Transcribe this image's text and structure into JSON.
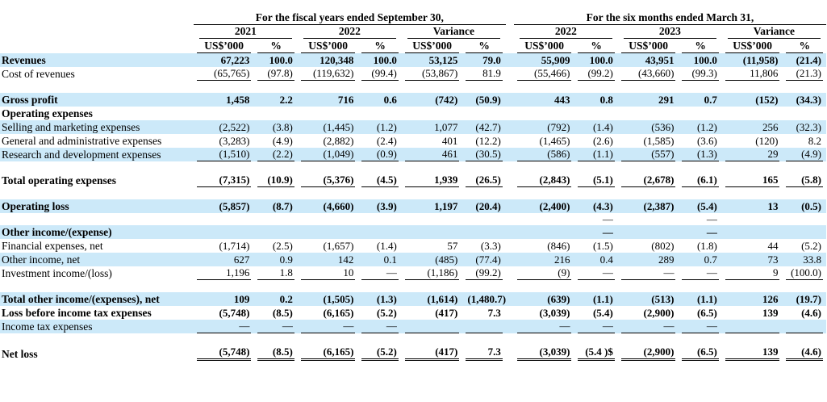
{
  "colors": {
    "row_highlight": "#cce9f9",
    "text": "#000000",
    "rule": "#000000"
  },
  "table": {
    "group_headers": [
      {
        "label": "For the fiscal years ended September 30,"
      },
      {
        "label": "For the six months ended March 31,"
      }
    ],
    "period_headers": [
      "2021",
      "2022",
      "Variance",
      "2022",
      "2023",
      "Variance"
    ],
    "unit_label": "US$’000",
    "pct_label": "%",
    "rows": [
      {
        "label": "Revenues",
        "bold": true,
        "bg": "blue",
        "cells": [
          "67,223",
          "100.0",
          "120,348",
          "100.0",
          "53,125",
          "79.0",
          "55,909",
          "100.0",
          "43,951",
          "100.0",
          "(11,958)",
          "(21.4)"
        ]
      },
      {
        "label": "Cost of revenues",
        "bg": "white",
        "underline": "single",
        "cells": [
          "(65,765)",
          "(97.8)",
          "(119,632)",
          "(99.4)",
          "(53,867)",
          "81.9",
          "(55,466)",
          "(99.2)",
          "(43,660)",
          "(99.3)",
          "11,806",
          "(21.3)"
        ]
      },
      {
        "spacer": true,
        "cells": [
          "",
          "",
          "",
          "",
          "",
          "",
          "",
          "",
          "",
          "",
          "",
          ""
        ]
      },
      {
        "label": "Gross profit",
        "bold": true,
        "bg": "blue",
        "cells": [
          "1,458",
          "2.2",
          "716",
          "0.6",
          "(742)",
          "(50.9)",
          "443",
          "0.8",
          "291",
          "0.7",
          "(152)",
          "(34.3)"
        ]
      },
      {
        "label": "Operating expenses",
        "bold": true,
        "bg": "white",
        "cells": [
          "",
          "",
          "",
          "",
          "",
          "",
          "",
          "",
          "",
          "",
          "",
          ""
        ]
      },
      {
        "label": "Selling and marketing expenses",
        "bg": "blue",
        "cells": [
          "(2,522)",
          "(3.8)",
          "(1,445)",
          "(1.2)",
          "1,077",
          "(42.7)",
          "(792)",
          "(1.4)",
          "(536)",
          "(1.2)",
          "256",
          "(32.3)"
        ]
      },
      {
        "label": "General and administrative expenses",
        "bg": "white",
        "cells": [
          "(3,283)",
          "(4.9)",
          "(2,882)",
          "(2.4)",
          "401",
          "(12.2)",
          "(1,465)",
          "(2.6)",
          "(1,585)",
          "(3.6)",
          "(120)",
          "8.2"
        ]
      },
      {
        "label": "Research and development expenses",
        "bg": "blue",
        "underline": "single",
        "cells": [
          "(1,510)",
          "(2.2)",
          "(1,049)",
          "(0.9)",
          "461",
          "(30.5)",
          "(586)",
          "(1.1)",
          "(557)",
          "(1.3)",
          "29",
          "(4.9)"
        ]
      },
      {
        "spacer": true,
        "cells": [
          "",
          "",
          "",
          "",
          "",
          "",
          "",
          "",
          "",
          "",
          "",
          ""
        ]
      },
      {
        "label": "Total operating expenses",
        "bold": true,
        "bg": "white",
        "underline": "single",
        "cells": [
          "(7,315)",
          "(10.9)",
          "(5,376)",
          "(4.5)",
          "1,939",
          "(26.5)",
          "(2,843)",
          "(5.1)",
          "(2,678)",
          "(6.1)",
          "165",
          "(5.8)"
        ]
      },
      {
        "spacer": true,
        "cells": [
          "",
          "",
          "",
          "",
          "",
          "",
          "",
          "",
          "",
          "",
          "",
          ""
        ]
      },
      {
        "label": "Operating loss",
        "bold": true,
        "bg": "blue",
        "cells": [
          "(5,857)",
          "(8.7)",
          "(4,660)",
          "(3.9)",
          "1,197",
          "(20.4)",
          "(2,400)",
          "(4.3)",
          "(2,387)",
          "(5.4)",
          "13",
          "(0.5)"
        ]
      },
      {
        "spacer": true,
        "cells": [
          "",
          "",
          "",
          "",
          "",
          "",
          "",
          "—",
          "",
          "—",
          "",
          ""
        ]
      },
      {
        "label": "Other income/(expense)",
        "bold": true,
        "bg": "blue",
        "cells": [
          "",
          "",
          "",
          "",
          "",
          "",
          "",
          "—",
          "",
          "—",
          "",
          ""
        ]
      },
      {
        "label": "Financial expenses, net",
        "bg": "white",
        "cells": [
          "(1,714)",
          "(2.5)",
          "(1,657)",
          "(1.4)",
          "57",
          "(3.3)",
          "(846)",
          "(1.5)",
          "(802)",
          "(1.8)",
          "44",
          "(5.2)"
        ]
      },
      {
        "label": "Other income, net",
        "bg": "blue",
        "cells": [
          "627",
          "0.9",
          "142",
          "0.1",
          "(485)",
          "(77.4)",
          "216",
          "0.4",
          "289",
          "0.7",
          "73",
          "33.8"
        ]
      },
      {
        "label": "Investment income/(loss)",
        "bg": "white",
        "underline": "single",
        "cells": [
          "1,196",
          "1.8",
          "10",
          "—",
          "(1,186)",
          "(99.2)",
          "(9)",
          "—",
          "—",
          "—",
          "9",
          "(100.0)"
        ]
      },
      {
        "spacer": true,
        "cells": [
          "",
          "",
          "",
          "",
          "",
          "",
          "",
          "",
          "",
          "",
          "",
          ""
        ]
      },
      {
        "label": "Total other income/(expenses), net",
        "bold": true,
        "bg": "blue",
        "cells": [
          "109",
          "0.2",
          "(1,505)",
          "(1.3)",
          "(1,614)",
          "(1,480.7)",
          "(639)",
          "(1.1)",
          "(513)",
          "(1.1)",
          "126",
          "(19.7)"
        ]
      },
      {
        "label": "Loss before income tax expenses",
        "bold": true,
        "bg": "white",
        "cells": [
          "(5,748)",
          "(8.5)",
          "(6,165)",
          "(5.2)",
          "(417)",
          "7.3",
          "(3,039)",
          "(5.4)",
          "(2,900)",
          "(6.5)",
          "139",
          "(4.6)"
        ]
      },
      {
        "label": "Income tax expenses",
        "bg": "blue",
        "underline": "single",
        "cells": [
          "—",
          "—",
          "—",
          "—",
          "",
          "",
          "—",
          "—",
          "—",
          "—",
          "",
          ""
        ]
      },
      {
        "spacer": true,
        "cells": [
          "",
          "",
          "",
          "",
          "",
          "",
          "",
          "",
          "",
          "",
          "",
          ""
        ]
      },
      {
        "label": "Net loss",
        "bold": true,
        "bg": "white",
        "underline": "double",
        "cells": [
          "(5,748)",
          "(8.5)",
          "(6,165)",
          "(5.2)",
          "(417)",
          "7.3",
          "(3,039)",
          "(5.4 )$",
          "(2,900)",
          "(6.5)",
          "139",
          "(4.6)"
        ]
      }
    ]
  }
}
